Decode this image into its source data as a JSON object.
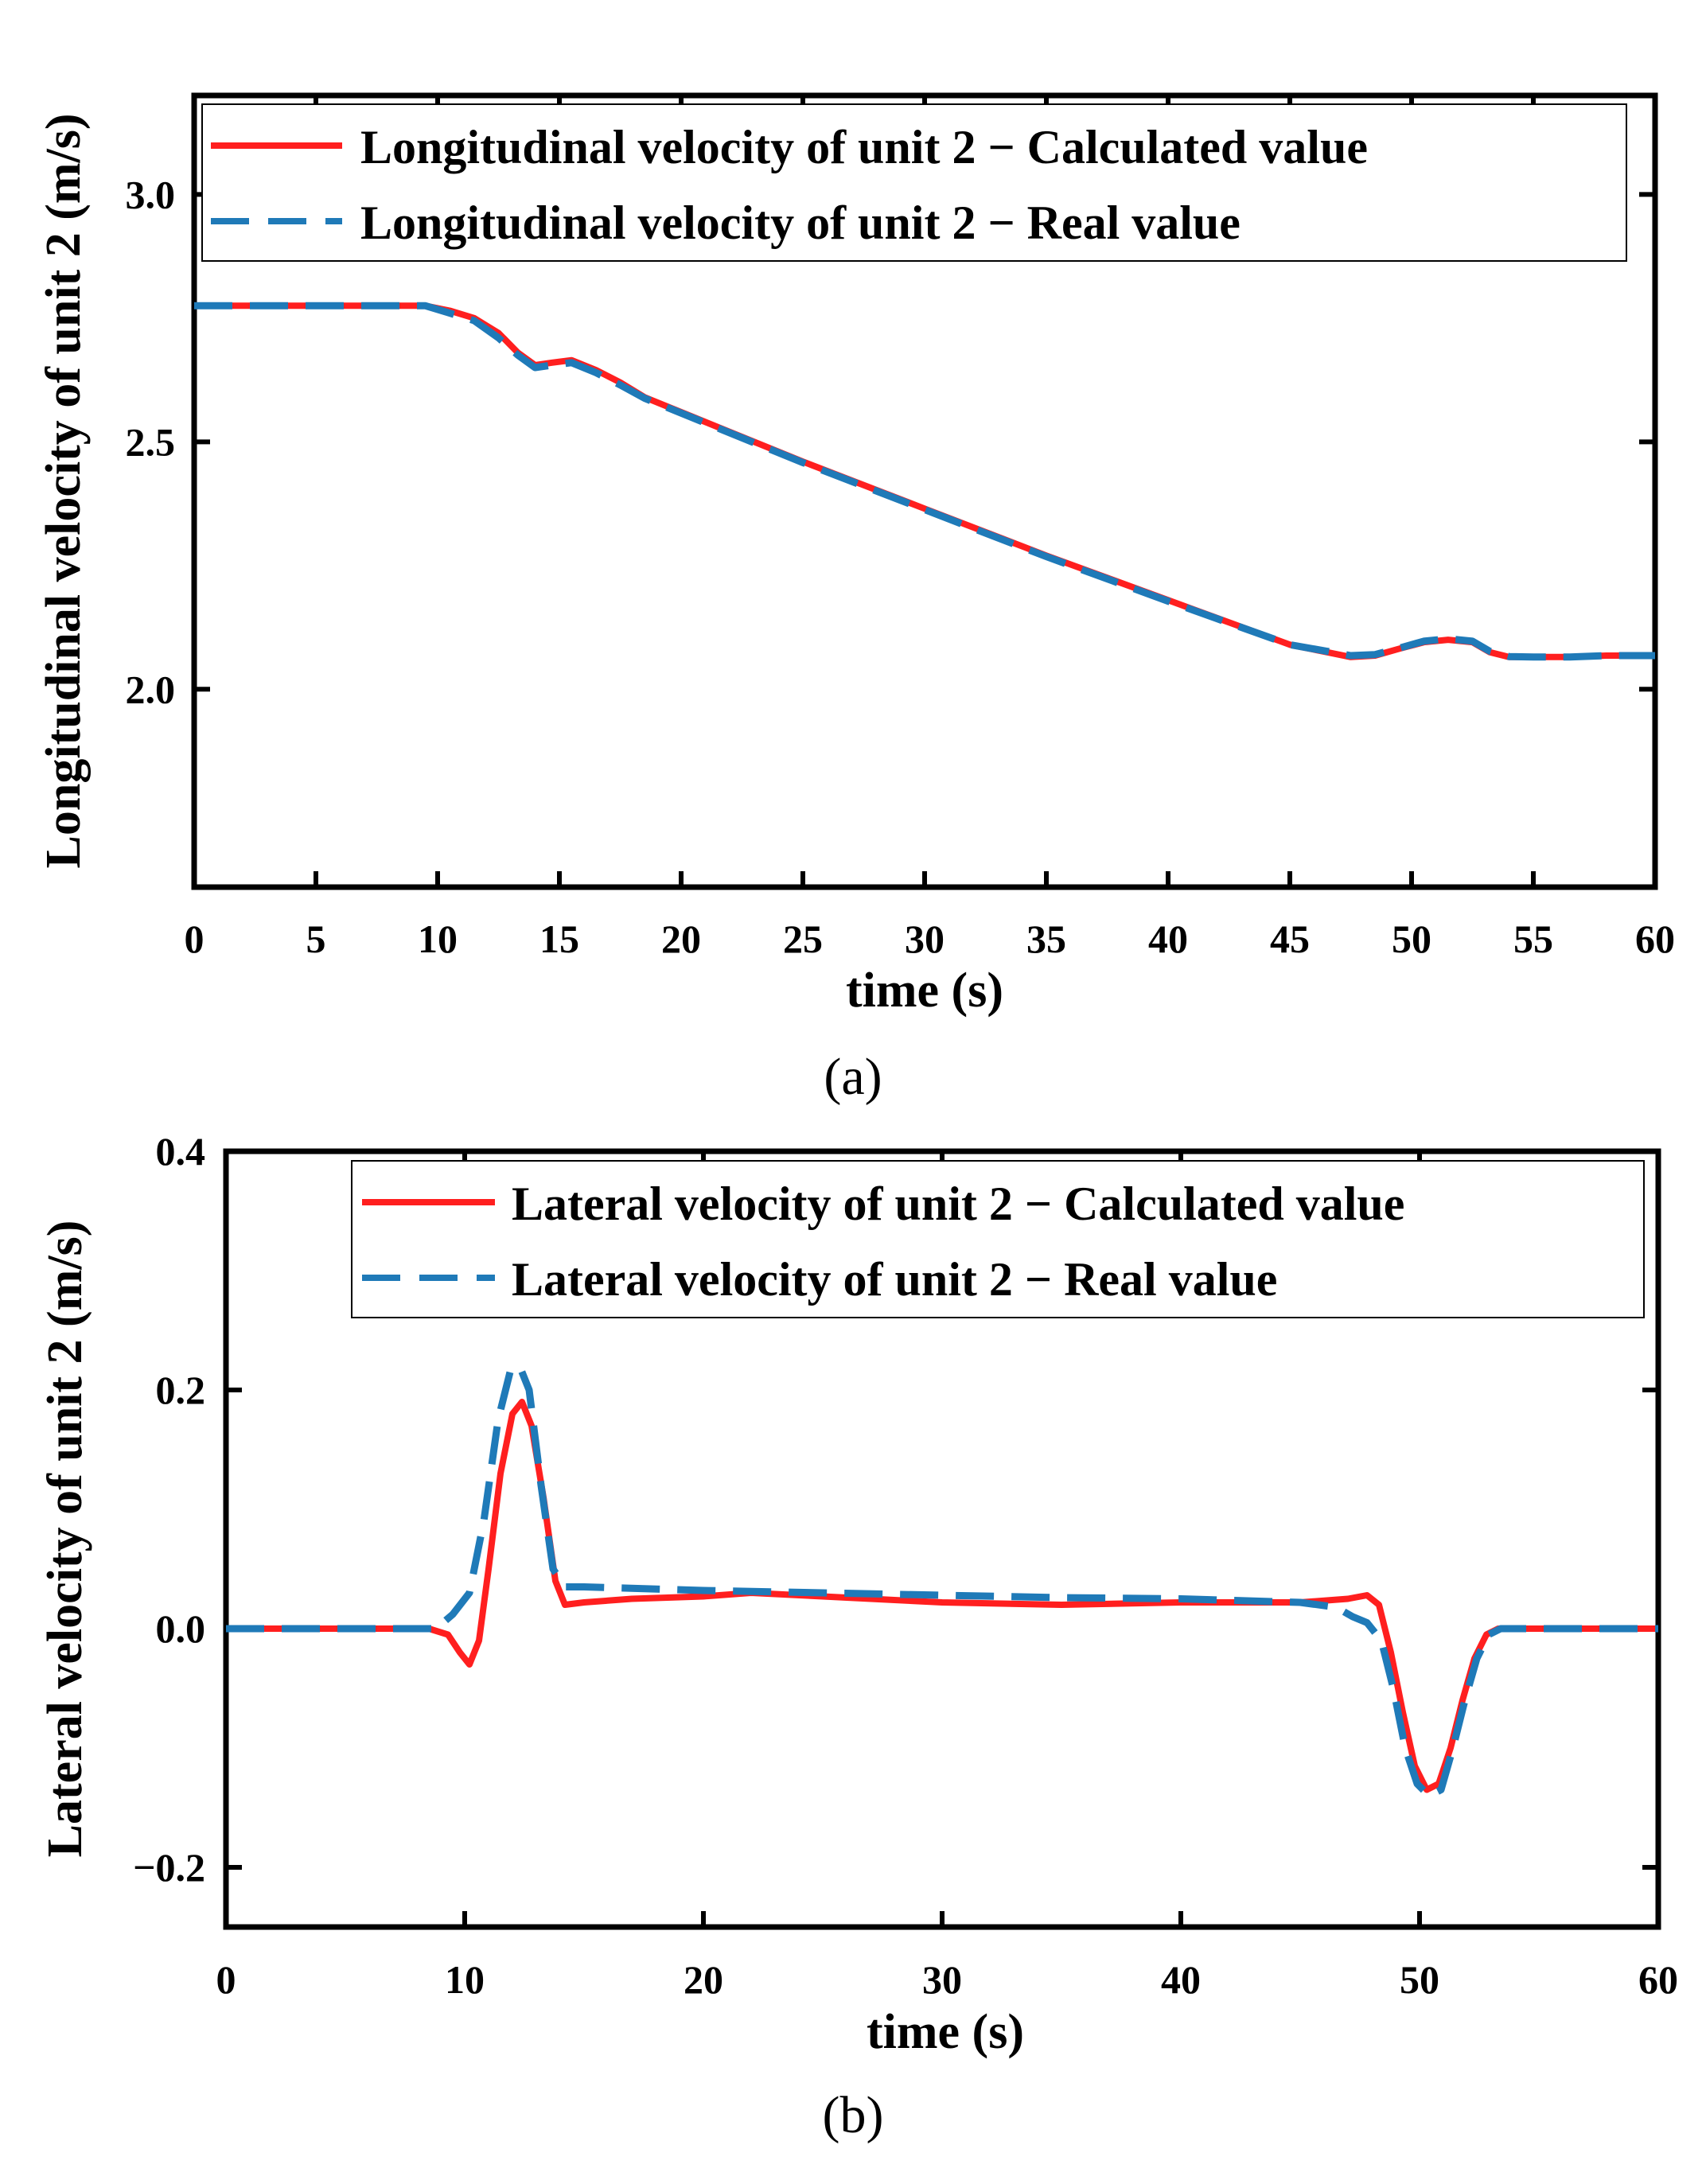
{
  "chart_data": [
    {
      "type": "line",
      "panel": "(a)",
      "caption": "(a)",
      "title": "",
      "xlabel": "time (s)",
      "ylabel": "Longitudinal velocity of unit 2 (m/s)",
      "xlim": [
        0,
        60
      ],
      "ylim": [
        1.6,
        3.2
      ],
      "xticks": [
        0,
        5,
        10,
        15,
        20,
        25,
        30,
        35,
        40,
        45,
        50,
        55,
        60
      ],
      "xtick_labels": [
        "0",
        "5",
        "10",
        "15",
        "20",
        "25",
        "30",
        "35",
        "40",
        "45",
        "50",
        "55",
        "60"
      ],
      "yticks": [
        2.0,
        2.5,
        3.0
      ],
      "ytick_labels": [
        "2.0",
        "2.5",
        "3.0"
      ],
      "legend_position": "top-left",
      "series": [
        {
          "name": "Longitudinal velocity of unit 2 − Calculated value",
          "color": "#ff1f1f",
          "style": "solid",
          "x": [
            0,
            9.5,
            10.5,
            11.5,
            12.5,
            13.3,
            14.0,
            14.7,
            15.5,
            16.5,
            17.5,
            18.5,
            20,
            25,
            30,
            35,
            40,
            45,
            46.5,
            47.5,
            48.5,
            49.5,
            50.5,
            51.5,
            52.5,
            53.2,
            54,
            55,
            56.5,
            58,
            60
          ],
          "y": [
            2.775,
            2.775,
            2.765,
            2.75,
            2.72,
            2.68,
            2.655,
            2.66,
            2.665,
            2.645,
            2.62,
            2.59,
            2.56,
            2.46,
            2.365,
            2.27,
            2.18,
            2.09,
            2.075,
            2.065,
            2.068,
            2.082,
            2.095,
            2.1,
            2.095,
            2.075,
            2.065,
            2.065,
            2.065,
            2.068,
            2.068
          ]
        },
        {
          "name": "Longitudinal velocity of unit 2 − Real value",
          "color": "#1f7ab8",
          "style": "dashed",
          "x": [
            0,
            9.5,
            10.5,
            11.5,
            12.5,
            13.3,
            14.0,
            14.7,
            15.5,
            16.5,
            17.5,
            18.5,
            20,
            25,
            30,
            35,
            40,
            45,
            46.5,
            47.5,
            48.5,
            49.5,
            50.5,
            51.5,
            52.5,
            53.2,
            54,
            55,
            56.5,
            58,
            60
          ],
          "y": [
            2.775,
            2.775,
            2.76,
            2.745,
            2.71,
            2.675,
            2.65,
            2.655,
            2.66,
            2.64,
            2.615,
            2.588,
            2.558,
            2.458,
            2.363,
            2.268,
            2.178,
            2.09,
            2.077,
            2.068,
            2.07,
            2.083,
            2.097,
            2.102,
            2.097,
            2.077,
            2.066,
            2.065,
            2.065,
            2.068,
            2.068
          ]
        }
      ]
    },
    {
      "type": "line",
      "panel": "(b)",
      "caption": "(b)",
      "title": "",
      "xlabel": "time (s)",
      "ylabel": "Lateral velocity of unit 2 (m/s)",
      "xlim": [
        0,
        60
      ],
      "ylim": [
        -0.25,
        0.4
      ],
      "xticks": [
        0,
        10,
        20,
        30,
        40,
        50,
        60
      ],
      "xtick_labels": [
        "0",
        "10",
        "20",
        "30",
        "40",
        "50",
        "60"
      ],
      "yticks": [
        -0.2,
        0.0,
        0.2,
        0.4
      ],
      "ytick_labels": [
        "−0.2",
        "0.0",
        "0.2",
        "0.4"
      ],
      "legend_position": "top-right",
      "series": [
        {
          "name": "Lateral velocity of unit 2 − Calculated value",
          "color": "#ff1f1f",
          "style": "solid",
          "x": [
            0,
            8.5,
            9.3,
            9.8,
            10.2,
            10.6,
            11.0,
            11.5,
            12.0,
            12.4,
            12.8,
            13.3,
            13.8,
            14.2,
            15,
            17,
            20,
            22,
            25,
            30,
            35,
            40,
            45,
            47,
            47.8,
            48.3,
            48.8,
            49.3,
            49.8,
            50.3,
            50.8,
            51.3,
            51.8,
            52.3,
            52.8,
            53.3,
            54,
            55,
            60
          ],
          "y": [
            0,
            0,
            -0.005,
            -0.02,
            -0.03,
            -0.01,
            0.05,
            0.13,
            0.18,
            0.19,
            0.17,
            0.11,
            0.04,
            0.02,
            0.022,
            0.025,
            0.027,
            0.03,
            0.027,
            0.022,
            0.02,
            0.022,
            0.022,
            0.025,
            0.028,
            0.02,
            -0.02,
            -0.07,
            -0.115,
            -0.135,
            -0.13,
            -0.1,
            -0.06,
            -0.025,
            -0.005,
            0,
            0,
            0,
            0
          ]
        },
        {
          "name": "Lateral velocity of unit 2 − Real value",
          "color": "#1f7ab8",
          "style": "dashed",
          "x": [
            0,
            8.8,
            9.5,
            10.2,
            10.8,
            11.4,
            11.9,
            12.3,
            12.7,
            13.2,
            13.7,
            14.2,
            15,
            20,
            25,
            30,
            35,
            40,
            45,
            46.5,
            47.2,
            47.8,
            48.4,
            48.9,
            49.4,
            49.9,
            50.4,
            50.9,
            51.4,
            51.9,
            52.4,
            52.9,
            53.4,
            54,
            55,
            60
          ],
          "y": [
            0,
            0,
            0.012,
            0.03,
            0.09,
            0.175,
            0.215,
            0.22,
            0.2,
            0.12,
            0.05,
            0.035,
            0.035,
            0.032,
            0.03,
            0.028,
            0.026,
            0.025,
            0.022,
            0.018,
            0.01,
            0.005,
            -0.01,
            -0.05,
            -0.1,
            -0.13,
            -0.14,
            -0.135,
            -0.1,
            -0.06,
            -0.025,
            -0.005,
            0,
            0,
            0,
            0
          ]
        }
      ]
    }
  ]
}
